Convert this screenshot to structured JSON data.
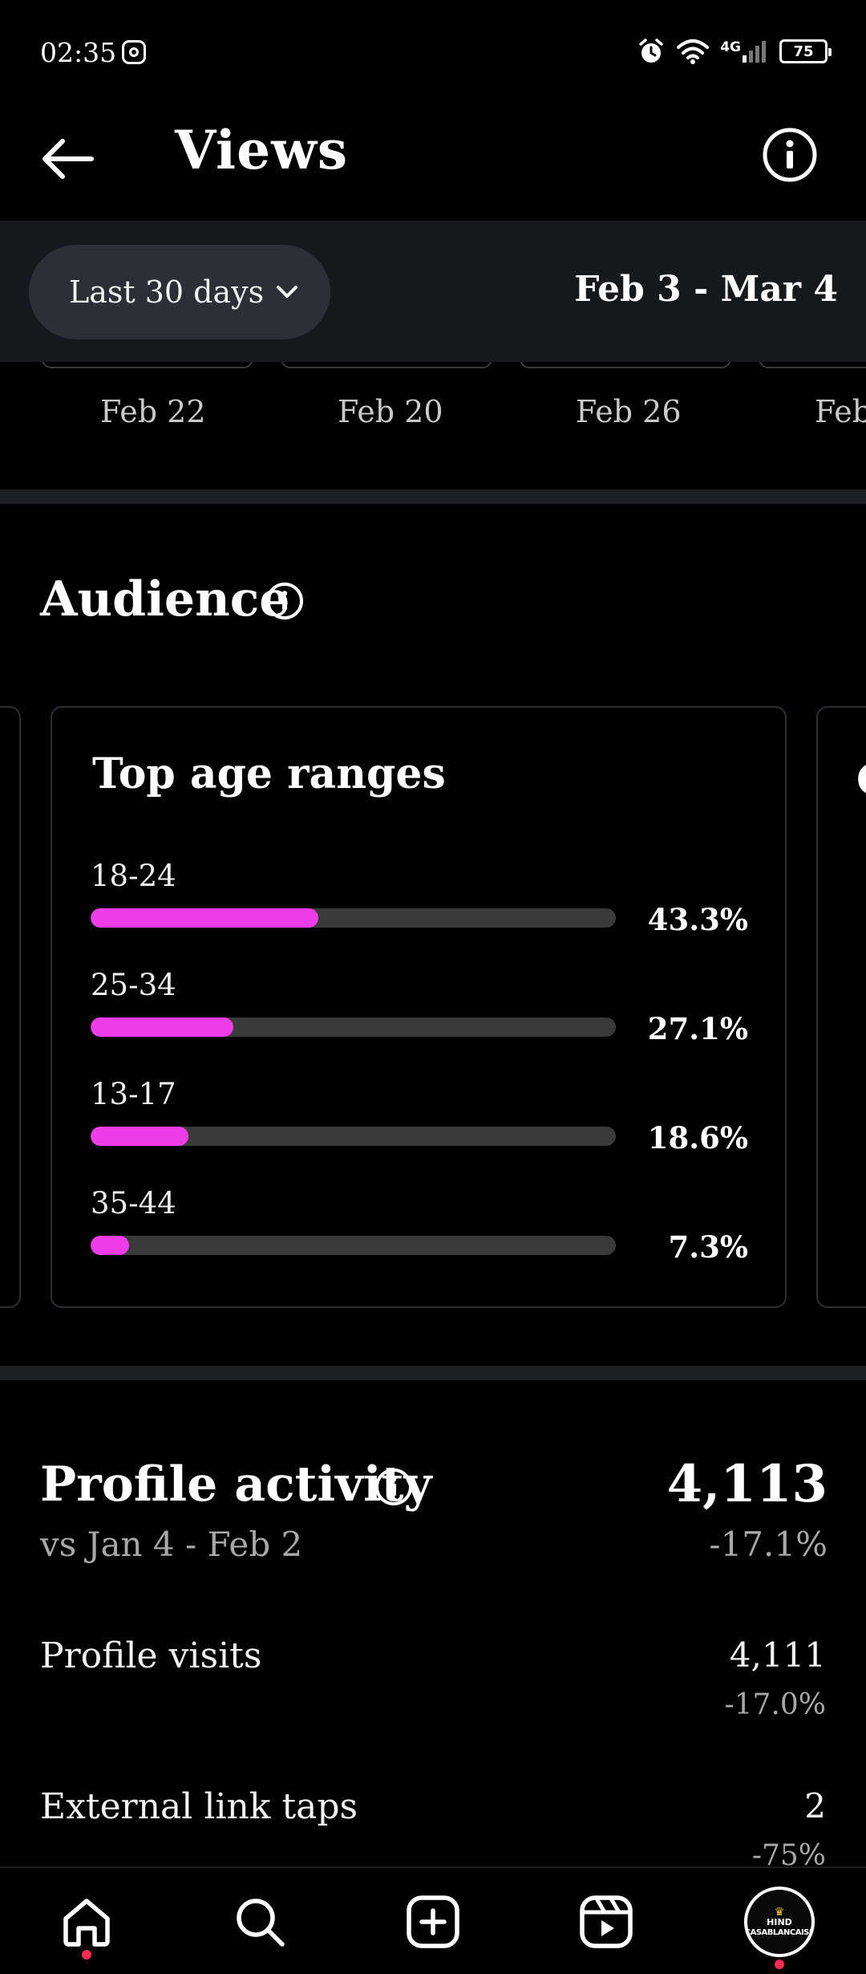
{
  "status_bar": {
    "time": "02:35",
    "network": "4G",
    "battery": "75"
  },
  "header": {
    "title": "Views"
  },
  "filter": {
    "range_label": "Last 30 days",
    "date_range": "Feb 3 - Mar 4"
  },
  "dates": [
    "Feb 22",
    "Feb 20",
    "Feb 26",
    "Feb"
  ],
  "audience": {
    "title": "Audience",
    "card_title": "Top age ranges",
    "peek_char": "G",
    "age_ranges": [
      {
        "label": "18-24",
        "value": "43.3%",
        "fraction": 0.433
      },
      {
        "label": "25-34",
        "value": "27.1%",
        "fraction": 0.271
      },
      {
        "label": "13-17",
        "value": "18.6%",
        "fraction": 0.186
      },
      {
        "label": "35-44",
        "value": "7.3%",
        "fraction": 0.073
      }
    ]
  },
  "profile_activity": {
    "title": "Profile activity",
    "value": "4,113",
    "comparison": "vs Jan 4 - Feb 2",
    "change": "-17.1%",
    "metrics": [
      {
        "label": "Profile visits",
        "value": "4,111",
        "change": "-17.0%"
      },
      {
        "label": "External link taps",
        "value": "2",
        "change": "-75%"
      }
    ]
  },
  "avatar": {
    "line1": "HIND",
    "line2": "CASABLANCAISE"
  },
  "colors": {
    "accent_bar": "#f03ce8",
    "background": "#000000",
    "notification_dot": "#ff2d55"
  }
}
